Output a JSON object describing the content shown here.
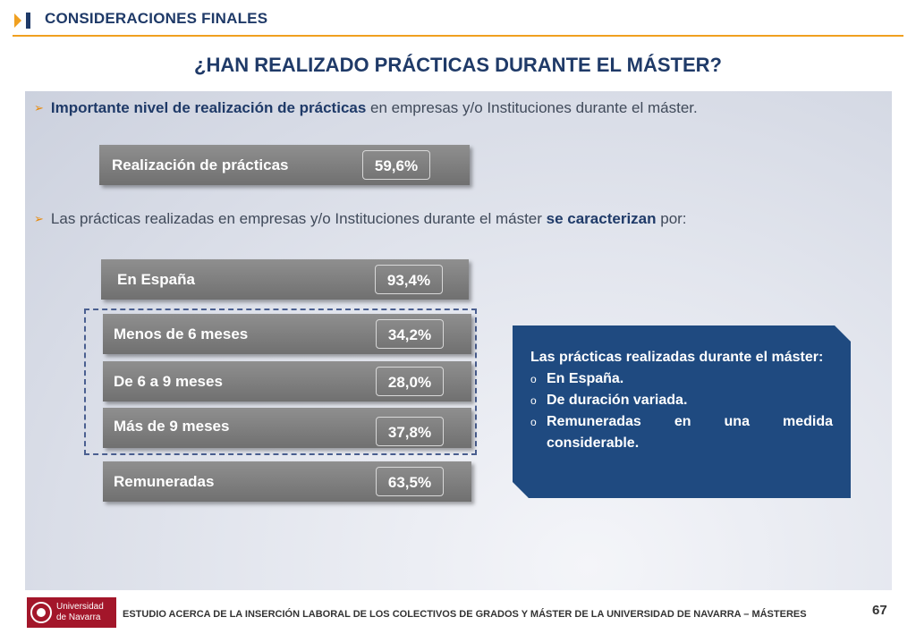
{
  "header": {
    "section": "CONSIDERACIONES FINALES"
  },
  "title": "¿HAN REALIZADO PRÁCTICAS DURANTE EL MÁSTER?",
  "bullet1": {
    "bold": "Importante nivel de realización de prácticas",
    "rest": " en empresas y/o Instituciones durante el máster."
  },
  "bullet2": {
    "pre": "Las prácticas realizadas en empresas y/o Instituciones  durante el máster ",
    "bold": "se caracterizan",
    "post": " por:"
  },
  "stats": [
    {
      "label": "Realización de prácticas",
      "value": "59,6%"
    },
    {
      "label": "En España",
      "value": "93,4%"
    },
    {
      "label": "Menos de 6 meses",
      "value": "34,2%"
    },
    {
      "label": "De 6 a 9 meses",
      "value": "28,0%"
    },
    {
      "label": "Más de 9 meses",
      "value": "37,8%"
    },
    {
      "label": "Remuneradas",
      "value": "63,5%"
    }
  ],
  "summary": {
    "intro": "Las prácticas realizadas durante el máster:",
    "items": [
      "En España.",
      "De duración variada.",
      "Remuneradas en una medida considerable."
    ]
  },
  "footer": {
    "logo_line1": "Universidad",
    "logo_line2": "de Navarra",
    "text": "ESTUDIO ACERCA DE LA INSERCIÓN LABORAL DE LOS COLECTIVOS DE GRADOS Y MÁSTER DE LA UNIVERSIDAD DE NAVARRA – MÁSTERES",
    "page": "67"
  },
  "colors": {
    "navy": "#1f3a68",
    "orange": "#f0a020",
    "note_blue": "#1f4a80",
    "bar_gray": "#808080",
    "logo_red": "#a3162a"
  }
}
